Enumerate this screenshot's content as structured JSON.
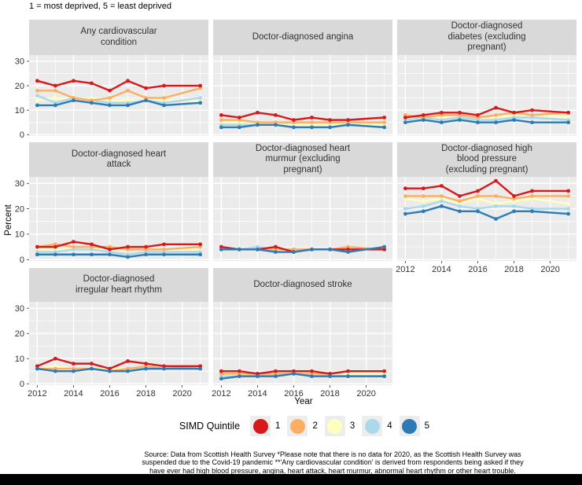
{
  "top_note": "1 = most deprived, 5 = least deprived",
  "source_note": "Source: Data from Scottish Health Survey *Please note that there is no data for 2020, as the Scottish Health Survey was\nsuspended due to the Covid-19 pandemic **'Any cardiovascular condition' is derived from respondents being asked if they\nhave ever had high blood pressure, angina, heart attack, heart murmur, abnormal heart rhythm or other heart trouble.",
  "colors": {
    "panel_bg": "#ebebeb",
    "strip_bg": "#d9d9d9",
    "gridline": "#ffffff",
    "tick_text": "#333333",
    "legend_key_bg": "#ededed",
    "bottom_bar": "#000000"
  },
  "chart_data": {
    "type": "line",
    "title": "",
    "xlabel": "Year",
    "ylabel": "Percent",
    "legend_title": "SIMD Quintile",
    "legend_position": "bottom",
    "grid": true,
    "x": [
      2012,
      2013,
      2014,
      2015,
      2016,
      2017,
      2018,
      2019,
      2021
    ],
    "x_ticks": [
      2012,
      2014,
      2016,
      2018,
      2020
    ],
    "x_minor_ticks": [
      2013,
      2015,
      2017,
      2019,
      2021
    ],
    "y_ticks": [
      0,
      10,
      20,
      30
    ],
    "y_minor_ticks": [
      5,
      15,
      25
    ],
    "xlim": [
      2011.55,
      2021.45
    ],
    "ylim": [
      -0.55,
      32.55
    ],
    "quintiles": [
      {
        "label": "1",
        "color": "#d7191c"
      },
      {
        "label": "2",
        "color": "#fdae61"
      },
      {
        "label": "3",
        "color": "#ffffbf"
      },
      {
        "label": "4",
        "color": "#abd9e9"
      },
      {
        "label": "5",
        "color": "#2c7bb6"
      }
    ],
    "panels": [
      {
        "title": "Any cardiovascular\ncondition",
        "series": [
          {
            "name": "1",
            "values": [
              22,
              20,
              22,
              21,
              18,
              22,
              19,
              20,
              20
            ]
          },
          {
            "name": "2",
            "values": [
              18,
              18,
              15,
              14,
              15,
              18,
              15,
              15,
              19
            ]
          },
          {
            "name": "3",
            "values": [
              14,
              15,
              14,
              15,
              14,
              14,
              14,
              14,
              14
            ]
          },
          {
            "name": "4",
            "values": [
              16,
              13,
              15,
              14,
              13,
              13,
              14,
              13,
              15
            ]
          },
          {
            "name": "5",
            "values": [
              12,
              12,
              14,
              13,
              12,
              12,
              14,
              12,
              13
            ]
          }
        ]
      },
      {
        "title": "Doctor-diagnosed angina",
        "series": [
          {
            "name": "1",
            "values": [
              8,
              7,
              9,
              8,
              6,
              7,
              6,
              6,
              7
            ]
          },
          {
            "name": "2",
            "values": [
              6,
              6,
              5,
              5,
              5,
              5,
              5,
              5,
              5
            ]
          },
          {
            "name": "3",
            "values": [
              5,
              5,
              5,
              4,
              4,
              4,
              4,
              4,
              4
            ]
          },
          {
            "name": "4",
            "values": [
              4,
              4,
              4,
              4,
              3,
              3,
              3,
              4,
              3
            ]
          },
          {
            "name": "5",
            "values": [
              3,
              3,
              4,
              4,
              3,
              3,
              3,
              4,
              3
            ]
          }
        ]
      },
      {
        "title": "Doctor-diagnosed\ndiabetes (excluding\npregnant)",
        "series": [
          {
            "name": "1",
            "values": [
              7,
              8,
              9,
              9,
              8,
              11,
              9,
              10,
              9
            ]
          },
          {
            "name": "2",
            "values": [
              8,
              7,
              8,
              8,
              7,
              8,
              9,
              8,
              9
            ]
          },
          {
            "name": "3",
            "values": [
              7,
              7,
              7,
              7,
              6,
              7,
              8,
              8,
              7
            ]
          },
          {
            "name": "4",
            "values": [
              6,
              7,
              6,
              7,
              6,
              6,
              7,
              7,
              6
            ]
          },
          {
            "name": "5",
            "values": [
              5,
              6,
              5,
              6,
              5,
              5,
              6,
              5,
              5
            ]
          }
        ]
      },
      {
        "title": "Doctor-diagnosed heart\nattack",
        "series": [
          {
            "name": "1",
            "values": [
              5,
              5,
              7,
              6,
              4,
              5,
              5,
              6,
              6
            ]
          },
          {
            "name": "2",
            "values": [
              5,
              6,
              5,
              5,
              5,
              4,
              4,
              4,
              5
            ]
          },
          {
            "name": "3",
            "values": [
              4,
              4,
              4,
              4,
              4,
              4,
              4,
              4,
              4
            ]
          },
          {
            "name": "4",
            "values": [
              3,
              3,
              4,
              4,
              3,
              2,
              3,
              3,
              3
            ]
          },
          {
            "name": "5",
            "values": [
              2,
              2,
              2,
              2,
              2,
              1,
              2,
              2,
              2
            ]
          }
        ]
      },
      {
        "title": "Doctor-diagnosed heart\nmurmur (excluding\npregnant)",
        "series": [
          {
            "name": "1",
            "values": [
              5,
              4,
              4,
              5,
              3,
              4,
              4,
              4,
              4
            ]
          },
          {
            "name": "2",
            "values": [
              4,
              4,
              4,
              4,
              4,
              4,
              4,
              5,
              4
            ]
          },
          {
            "name": "3",
            "values": [
              4,
              4,
              4,
              4,
              3,
              4,
              4,
              4,
              4
            ]
          },
          {
            "name": "4",
            "values": [
              4,
              4,
              5,
              4,
              4,
              4,
              4,
              4,
              4
            ]
          },
          {
            "name": "5",
            "values": [
              4,
              4,
              4,
              3,
              3,
              4,
              4,
              3,
              5
            ]
          }
        ]
      },
      {
        "title": "Doctor-diagnosed high\nblood pressure\n(excluding pregnant)",
        "series": [
          {
            "name": "1",
            "values": [
              28,
              28,
              29,
              25,
              27,
              31,
              25,
              27,
              27
            ]
          },
          {
            "name": "2",
            "values": [
              25,
              25,
              25,
              23,
              25,
              25,
              24,
              25,
              25
            ]
          },
          {
            "name": "3",
            "values": [
              24,
              23,
              24,
              22,
              24,
              22,
              23,
              24,
              22
            ]
          },
          {
            "name": "4",
            "values": [
              20,
              21,
              23,
              21,
              20,
              21,
              21,
              20,
              20
            ]
          },
          {
            "name": "5",
            "values": [
              18,
              19,
              21,
              19,
              19,
              16,
              19,
              19,
              18
            ]
          }
        ]
      },
      {
        "title": "Doctor-diagnosed\nirregular heart rhythm",
        "series": [
          {
            "name": "1",
            "values": [
              7,
              10,
              8,
              8,
              6,
              9,
              8,
              7,
              7
            ]
          },
          {
            "name": "2",
            "values": [
              6,
              6,
              6,
              6,
              5,
              6,
              7,
              6,
              7
            ]
          },
          {
            "name": "3",
            "values": [
              6,
              7,
              6,
              6,
              6,
              6,
              7,
              6,
              7
            ]
          },
          {
            "name": "4",
            "values": [
              6,
              6,
              6,
              6,
              5,
              6,
              6,
              6,
              6
            ]
          },
          {
            "name": "5",
            "values": [
              6,
              5,
              5,
              6,
              5,
              5,
              6,
              6,
              6
            ]
          }
        ]
      },
      {
        "title": "Doctor-diagnosed stroke",
        "series": [
          {
            "name": "1",
            "values": [
              5,
              5,
              4,
              5,
              5,
              5,
              4,
              5,
              5
            ]
          },
          {
            "name": "2",
            "values": [
              4,
              4,
              4,
              4,
              4,
              4,
              4,
              5,
              5
            ]
          },
          {
            "name": "3",
            "values": [
              3,
              4,
              3,
              3,
              4,
              4,
              3,
              4,
              4
            ]
          },
          {
            "name": "4",
            "values": [
              3,
              3,
              3,
              3,
              4,
              3,
              3,
              3,
              3
            ]
          },
          {
            "name": "5",
            "values": [
              2,
              3,
              3,
              3,
              4,
              3,
              3,
              3,
              3
            ]
          }
        ]
      }
    ]
  }
}
